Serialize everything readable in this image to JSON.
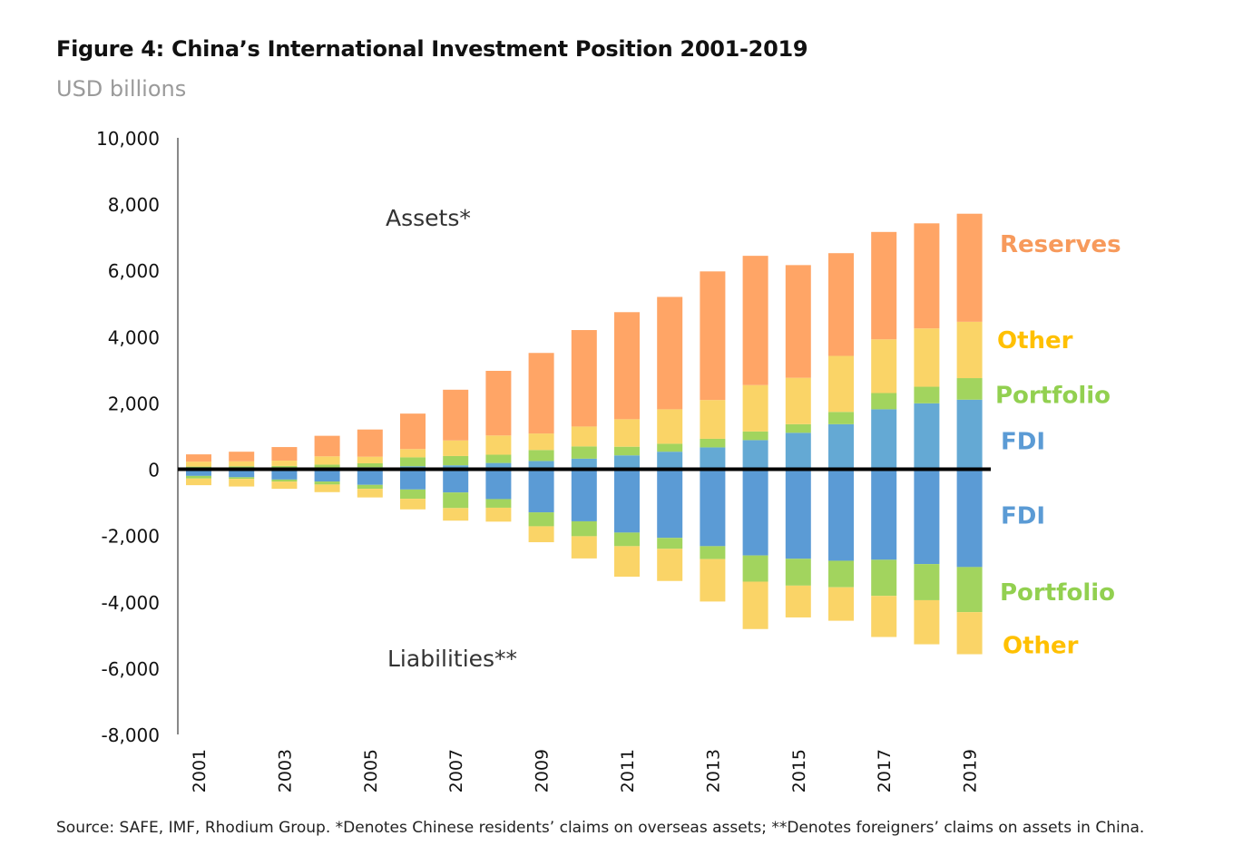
{
  "chart_data": {
    "type": "bar",
    "stacked": true,
    "title": "Figure 4: China’s International Investment Position 2001-2019",
    "subtitle": "USD billions",
    "source": "Source: SAFE, IMF, Rhodium Group. *Denotes Chinese residents’ claims on overseas assets; **Denotes foreigners’ claims on assets in China.",
    "ylim": [
      -8000,
      10000
    ],
    "yticks": [
      "10,000",
      "8,000",
      "6,000",
      "4,000",
      "2,000",
      "0",
      "-2,000",
      "-4,000",
      "-6,000",
      "-8,000"
    ],
    "ytick_values": [
      10000,
      8000,
      6000,
      4000,
      2000,
      0,
      -2000,
      -4000,
      -6000,
      -8000
    ],
    "categories": [
      "2001",
      "2002",
      "2003",
      "2004",
      "2005",
      "2006",
      "2007",
      "2008",
      "2009",
      "2010",
      "2011",
      "2012",
      "2013",
      "2014",
      "2015",
      "2016",
      "2017",
      "2018",
      "2019"
    ],
    "xtick_labels": [
      "2001",
      "2003",
      "2005",
      "2007",
      "2009",
      "2011",
      "2013",
      "2015",
      "2017",
      "2019"
    ],
    "annotations": {
      "assets": "Assets*",
      "liabilities": "Liabilities**"
    },
    "series": [
      {
        "name": "FDI",
        "group": "assets",
        "color": "#64A9D4",
        "values": [
          30,
          40,
          30,
          50,
          60,
          90,
          120,
          190,
          250,
          320,
          420,
          530,
          660,
          880,
          1100,
          1360,
          1810,
          1990,
          2100
        ]
      },
      {
        "name": "Portfolio",
        "group": "assets",
        "color": "#A2D45E",
        "values": [
          50,
          50,
          70,
          90,
          120,
          270,
          280,
          250,
          330,
          370,
          260,
          240,
          260,
          260,
          260,
          370,
          490,
          500,
          650
        ]
      },
      {
        "name": "Other",
        "group": "assets",
        "color": "#FAD467",
        "values": [
          150,
          150,
          160,
          250,
          200,
          250,
          470,
          580,
          500,
          600,
          830,
          1040,
          1170,
          1400,
          1400,
          1690,
          1620,
          1760,
          1700
        ]
      },
      {
        "name": "Reserves",
        "group": "assets",
        "color": "#FFA566",
        "values": [
          220,
          290,
          410,
          620,
          820,
          1070,
          1530,
          1950,
          2430,
          2910,
          3230,
          3390,
          3880,
          3900,
          3400,
          3100,
          3240,
          3170,
          3260
        ]
      },
      {
        "name": "FDI",
        "group": "liabilities",
        "color": "#5B9BD5",
        "values": [
          -200,
          -240,
          -310,
          -370,
          -470,
          -610,
          -700,
          -900,
          -1300,
          -1570,
          -1910,
          -2070,
          -2320,
          -2600,
          -2700,
          -2760,
          -2730,
          -2860,
          -2950
        ]
      },
      {
        "name": "Portfolio",
        "group": "liabilities",
        "color": "#A2D45E",
        "values": [
          -80,
          -50,
          -60,
          -90,
          -120,
          -280,
          -470,
          -260,
          -420,
          -450,
          -410,
          -330,
          -390,
          -790,
          -810,
          -800,
          -1090,
          -1090,
          -1360
        ]
      },
      {
        "name": "Other",
        "group": "liabilities",
        "color": "#FAD467",
        "values": [
          -200,
          -230,
          -220,
          -230,
          -260,
          -320,
          -380,
          -420,
          -480,
          -670,
          -920,
          -970,
          -1280,
          -1430,
          -960,
          -1010,
          -1240,
          -1330,
          -1270
        ]
      }
    ],
    "legend": [
      {
        "label": "Reserves",
        "color": "#F79A5C",
        "value_anchor": 6800
      },
      {
        "label": "Other",
        "color": "#FFC000",
        "value_anchor": 3900
      },
      {
        "label": "Portfolio",
        "color": "#92D050",
        "value_anchor": 2250
      },
      {
        "label": "FDI",
        "color": "#5B9BD5",
        "value_anchor": 850
      },
      {
        "label": "FDI",
        "color": "#5B9BD5",
        "value_anchor": -1400
      },
      {
        "label": "Portfolio",
        "color": "#92D050",
        "value_anchor": -3700
      },
      {
        "label": "Other",
        "color": "#FFC000",
        "value_anchor": -5300
      }
    ],
    "legend_placement": "right",
    "grid": false
  }
}
